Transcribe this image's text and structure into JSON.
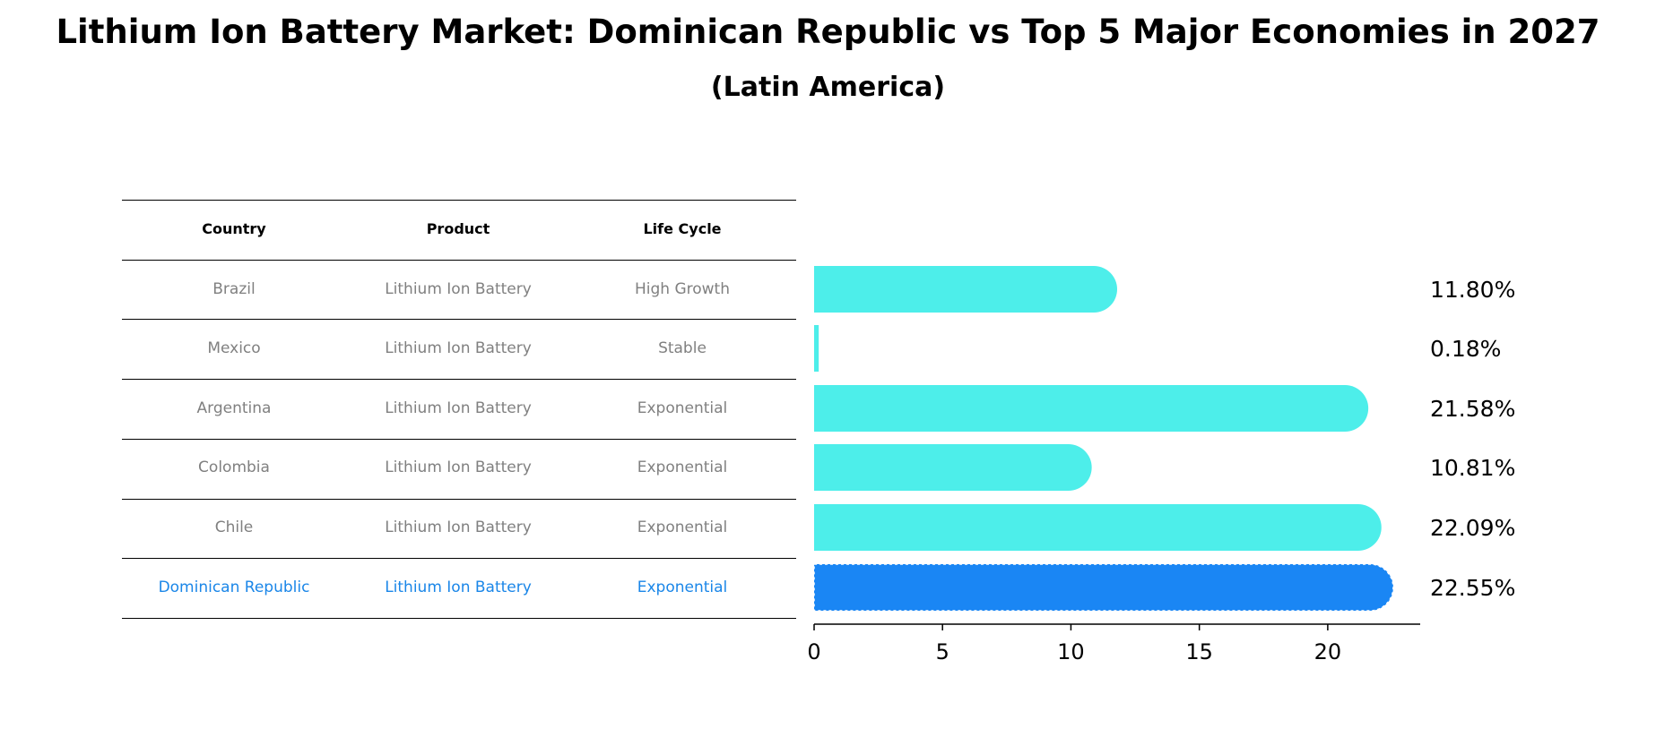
{
  "title": "Lithium Ion Battery Market: Dominican Republic vs Top 5 Major Economies in 2027",
  "subtitle": "(Latin America)",
  "table": {
    "headers": [
      "Country",
      "Product",
      "Life Cycle"
    ],
    "rows": [
      [
        "Brazil",
        "Lithium Ion Battery",
        "High Growth"
      ],
      [
        "Mexico",
        "Lithium Ion Battery",
        "Stable"
      ],
      [
        "Argentina",
        "Lithium Ion Battery",
        "Exponential"
      ],
      [
        "Colombia",
        "Lithium Ion Battery",
        "Exponential"
      ],
      [
        "Chile",
        "Lithium Ion Battery",
        "Exponential"
      ],
      [
        "Dominican Republic",
        "Lithium Ion Battery",
        "Exponential"
      ]
    ]
  },
  "chart_data": {
    "type": "bar",
    "orientation": "horizontal",
    "title": "Lithium Ion Battery Market: Dominican Republic vs Top 5 Major Economies in 2027",
    "subtitle": "(Latin America)",
    "categories": [
      "Brazil",
      "Mexico",
      "Argentina",
      "Colombia",
      "Chile",
      "Dominican Republic"
    ],
    "values": [
      11.8,
      0.18,
      21.58,
      10.81,
      22.09,
      22.55
    ],
    "labels": [
      "11.80%",
      "0.18%",
      "21.58%",
      "10.81%",
      "22.09%",
      "22.55%"
    ],
    "highlight": "Dominican Republic",
    "xlim": [
      0,
      23.6
    ],
    "xticks": [
      0,
      5,
      10,
      15,
      20
    ],
    "xlabel": "",
    "ylabel": "",
    "colors": {
      "bar": "#4deeea",
      "highlight": "#1a86f4",
      "text_highlight": "#1a86e8",
      "text_muted": "#808080"
    }
  }
}
